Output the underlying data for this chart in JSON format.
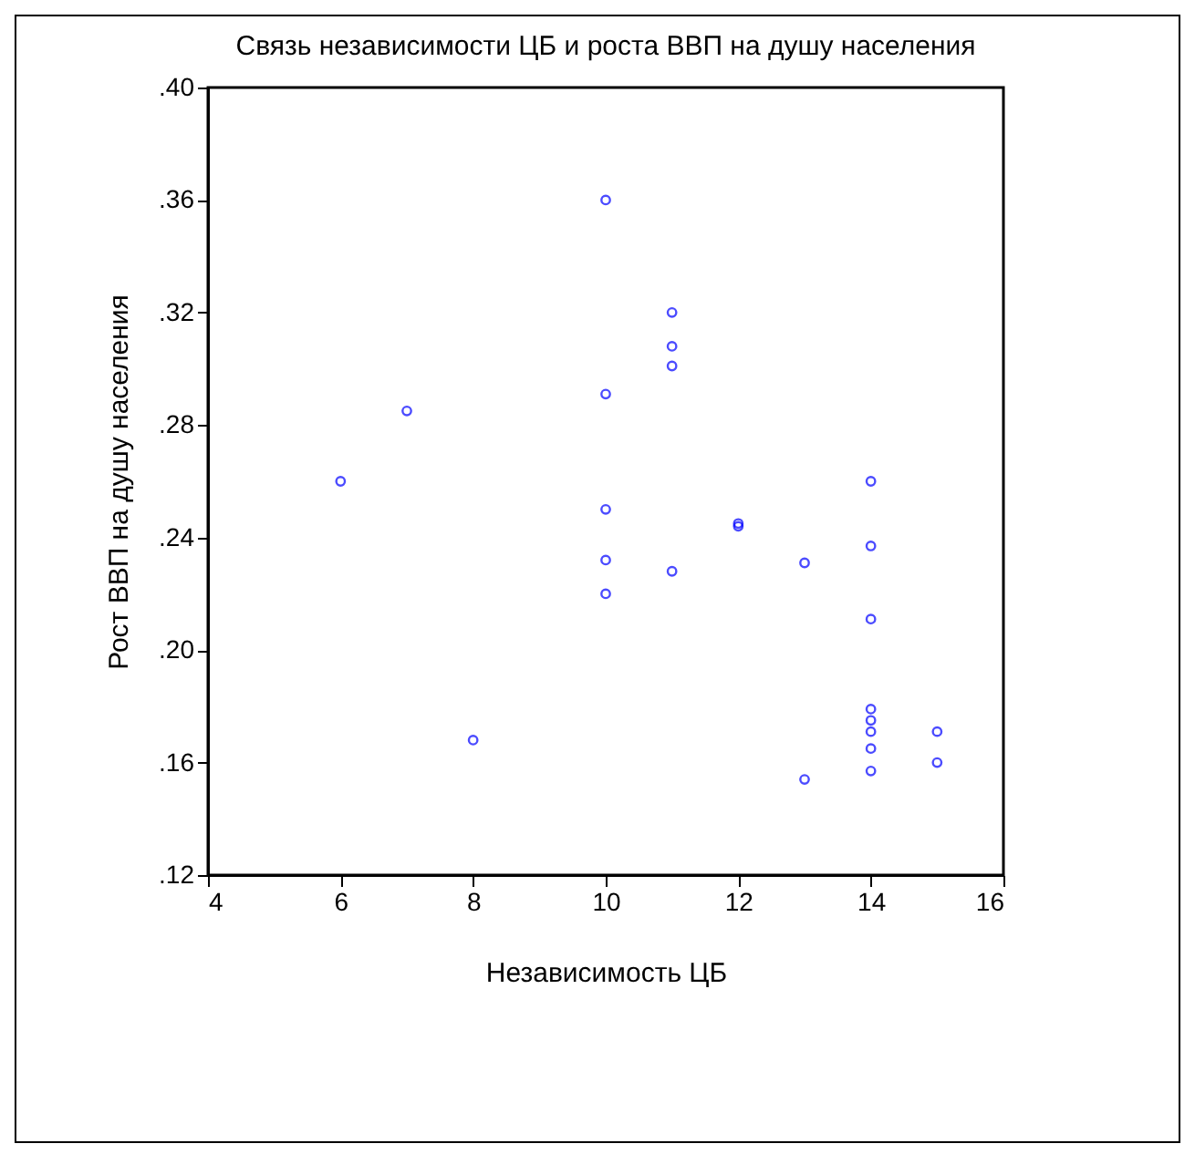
{
  "chart_data": {
    "type": "scatter",
    "title": "Связь независимости ЦБ и роста ВВП на душу населения",
    "xlabel": "Независимость ЦБ",
    "ylabel": "Рост ВВП на душу населения",
    "x": [
      6,
      7,
      8,
      10,
      10,
      10,
      10,
      10,
      11,
      11,
      11,
      11,
      12,
      12,
      13,
      13,
      14,
      14,
      14,
      14,
      14,
      14,
      14,
      14,
      15,
      15
    ],
    "series": [
      {
        "color": "#0000ff",
        "values": [
          0.26,
          0.285,
          0.168,
          0.36,
          0.291,
          0.25,
          0.232,
          0.22,
          0.32,
          0.308,
          0.301,
          0.228,
          0.245,
          0.244,
          0.231,
          0.154,
          0.26,
          0.237,
          0.211,
          0.179,
          0.175,
          0.171,
          0.165,
          0.157,
          0.171,
          0.16
        ]
      }
    ],
    "xlim": [
      4,
      16
    ],
    "xticks": [
      4,
      6,
      8,
      10,
      12,
      14,
      16
    ],
    "ylim": [
      0.12,
      0.4
    ],
    "yticks": [
      {
        "value": 0.12,
        "label": ".12"
      },
      {
        "value": 0.16,
        "label": ".16"
      },
      {
        "value": 0.2,
        "label": ".20"
      },
      {
        "value": 0.24,
        "label": ".24"
      },
      {
        "value": 0.28,
        "label": ".28"
      },
      {
        "value": 0.32,
        "label": ".32"
      },
      {
        "value": 0.36,
        "label": ".36"
      },
      {
        "value": 0.4,
        "label": ".40"
      }
    ],
    "grid": false,
    "marker": "circle"
  }
}
